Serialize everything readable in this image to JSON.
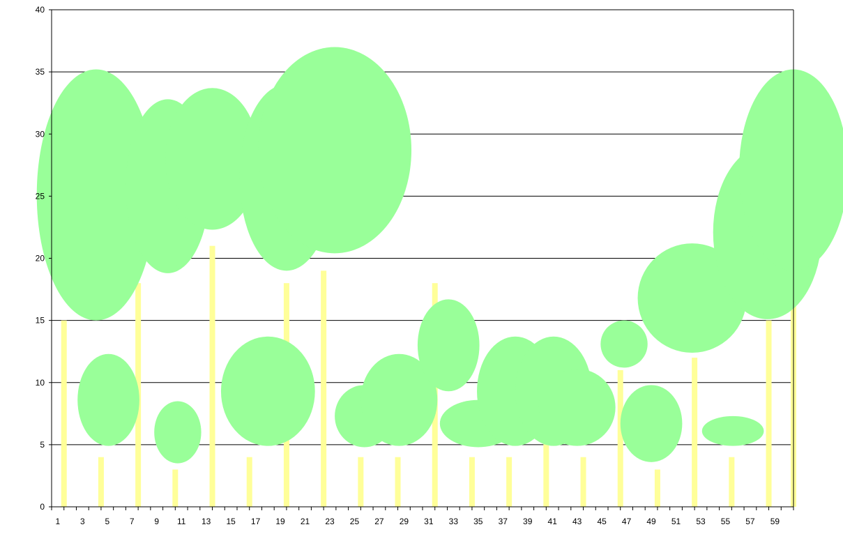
{
  "chart_data": {
    "type": "bar",
    "title": "",
    "xlabel": "",
    "ylabel": "",
    "ylim": [
      0,
      40
    ],
    "xlim": [
      0,
      60
    ],
    "grid": true,
    "legend": "none",
    "colors": {
      "trunk": "#ffff99",
      "crown": "#99ff99",
      "grid": "#000000"
    },
    "y_ticks": [
      "0",
      "5",
      "10",
      "15",
      "20",
      "25",
      "30",
      "35",
      "40"
    ],
    "x_ticks": [
      "1",
      "3",
      "5",
      "7",
      "9",
      "11",
      "13",
      "15",
      "17",
      "19",
      "21",
      "23",
      "25",
      "27",
      "29",
      "31",
      "33",
      "35",
      "37",
      "39",
      "41",
      "43",
      "45",
      "47",
      "49",
      "51",
      "53",
      "55",
      "57",
      "59"
    ],
    "trunks": [
      {
        "x": 1,
        "height": 15
      },
      {
        "x": 4,
        "height": 4
      },
      {
        "x": 7,
        "height": 18
      },
      {
        "x": 10,
        "height": 3
      },
      {
        "x": 13,
        "height": 21
      },
      {
        "x": 16,
        "height": 4
      },
      {
        "x": 19,
        "height": 18
      },
      {
        "x": 22,
        "height": 19
      },
      {
        "x": 25,
        "height": 4
      },
      {
        "x": 28,
        "height": 4
      },
      {
        "x": 31,
        "height": 18
      },
      {
        "x": 34,
        "height": 4
      },
      {
        "x": 37,
        "height": 4
      },
      {
        "x": 40,
        "height": 6
      },
      {
        "x": 43,
        "height": 4
      },
      {
        "x": 46,
        "height": 11
      },
      {
        "x": 49,
        "height": 3
      },
      {
        "x": 52,
        "height": 12
      },
      {
        "x": 55,
        "height": 4
      },
      {
        "x": 58,
        "height": 15
      },
      {
        "x": 60,
        "height": 17
      }
    ],
    "crowns": [
      {
        "x": 3.6,
        "y": 25.1,
        "rx": 4.8,
        "ry": 10.1
      },
      {
        "x": 9.4,
        "y": 25.8,
        "rx": 3.4,
        "ry": 7.0
      },
      {
        "x": 13.0,
        "y": 28.0,
        "rx": 3.8,
        "ry": 5.7
      },
      {
        "x": 19.0,
        "y": 26.5,
        "rx": 3.8,
        "ry": 7.5
      },
      {
        "x": 22.9,
        "y": 28.7,
        "rx": 6.2,
        "ry": 8.3
      },
      {
        "x": 4.6,
        "y": 8.6,
        "rx": 2.5,
        "ry": 3.7
      },
      {
        "x": 10.2,
        "y": 6.0,
        "rx": 1.9,
        "ry": 2.5
      },
      {
        "x": 17.5,
        "y": 9.3,
        "rx": 3.8,
        "ry": 4.4
      },
      {
        "x": 25.3,
        "y": 7.3,
        "rx": 2.4,
        "ry": 2.5
      },
      {
        "x": 28.1,
        "y": 8.6,
        "rx": 3.1,
        "ry": 3.7
      },
      {
        "x": 32.1,
        "y": 13.0,
        "rx": 2.5,
        "ry": 3.7
      },
      {
        "x": 34.5,
        "y": 6.7,
        "rx": 3.1,
        "ry": 1.9
      },
      {
        "x": 37.5,
        "y": 9.3,
        "rx": 3.1,
        "ry": 4.4
      },
      {
        "x": 40.6,
        "y": 9.3,
        "rx": 3.1,
        "ry": 4.4
      },
      {
        "x": 42.5,
        "y": 8.0,
        "rx": 3.1,
        "ry": 3.1
      },
      {
        "x": 46.3,
        "y": 13.1,
        "rx": 1.9,
        "ry": 1.9
      },
      {
        "x": 48.5,
        "y": 6.7,
        "rx": 2.5,
        "ry": 3.1
      },
      {
        "x": 51.8,
        "y": 16.8,
        "rx": 4.4,
        "ry": 4.4
      },
      {
        "x": 55.1,
        "y": 6.1,
        "rx": 2.5,
        "ry": 1.2
      },
      {
        "x": 57.9,
        "y": 22.1,
        "rx": 4.4,
        "ry": 7.0
      },
      {
        "x": 60.0,
        "y": 27.1,
        "rx": 4.4,
        "ry": 8.1
      }
    ]
  }
}
